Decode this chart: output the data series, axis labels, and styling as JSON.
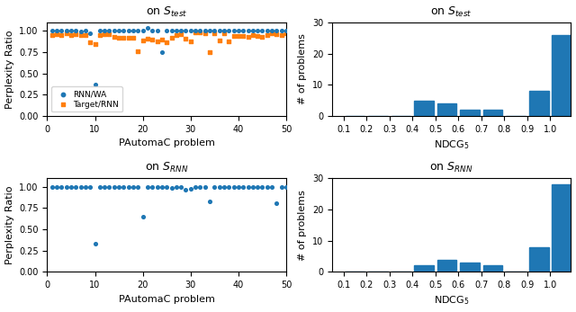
{
  "title_test": "on $S_{test}$",
  "title_rnn": "on $S_{RNN}$",
  "xlabel_scatter": "PAutomaC problem",
  "ylabel_scatter": "Perplexity Ratio",
  "xlabel_hist": "NDCG$_5$",
  "ylabel_hist": "# of problems",
  "legend_rnn_wa": "RNN/WA",
  "legend_target_rnn": "Target/RNN",
  "scatter_color_blue": "#1f77b4",
  "scatter_color_orange": "#ff7f0e",
  "hist_color": "#1f77b4",
  "rnn_wa_x": [
    1,
    2,
    3,
    4,
    5,
    6,
    7,
    8,
    9,
    10,
    11,
    12,
    13,
    14,
    15,
    16,
    17,
    18,
    19,
    20,
    21,
    22,
    23,
    24,
    25,
    26,
    27,
    28,
    29,
    30,
    31,
    32,
    33,
    34,
    35,
    36,
    37,
    38,
    39,
    40,
    41,
    42,
    43,
    44,
    45,
    46,
    47,
    48,
    49,
    50
  ],
  "rnn_wa_y_test": [
    1.0,
    1.0,
    1.0,
    1.0,
    1.0,
    1.0,
    0.99,
    1.0,
    0.97,
    0.37,
    1.0,
    1.0,
    1.0,
    1.0,
    1.0,
    1.0,
    1.0,
    1.0,
    1.0,
    1.0,
    1.04,
    1.0,
    1.0,
    0.75,
    1.0,
    1.0,
    1.0,
    1.0,
    1.0,
    1.0,
    1.0,
    1.0,
    1.0,
    1.0,
    1.0,
    1.0,
    1.0,
    1.0,
    1.0,
    1.0,
    1.0,
    1.0,
    1.0,
    1.0,
    1.0,
    1.0,
    1.0,
    1.0,
    1.0,
    1.0
  ],
  "target_rnn_x": [
    1,
    2,
    3,
    4,
    5,
    6,
    7,
    8,
    9,
    10,
    11,
    12,
    13,
    14,
    15,
    16,
    17,
    18,
    19,
    20,
    21,
    22,
    23,
    24,
    25,
    26,
    27,
    28,
    29,
    30,
    31,
    32,
    33,
    34,
    35,
    36,
    37,
    38,
    39,
    40,
    41,
    42,
    43,
    44,
    45,
    46,
    47,
    48,
    49,
    50
  ],
  "target_rnn_y_test": [
    0.95,
    0.96,
    0.95,
    0.97,
    0.95,
    0.96,
    0.95,
    0.95,
    0.87,
    0.84,
    0.95,
    0.96,
    0.96,
    0.93,
    0.92,
    0.92,
    0.92,
    0.92,
    0.76,
    0.89,
    0.91,
    0.9,
    0.88,
    0.9,
    0.87,
    0.92,
    0.95,
    0.96,
    0.91,
    0.88,
    0.98,
    0.98,
    0.97,
    0.75,
    0.97,
    0.89,
    0.97,
    0.88,
    0.94,
    0.94,
    0.94,
    0.93,
    0.95,
    0.94,
    0.93,
    0.95,
    0.97,
    0.96,
    0.95,
    0.97
  ],
  "rnn_wa_y_rnn": [
    1.0,
    1.0,
    1.0,
    1.0,
    1.0,
    1.0,
    1.0,
    1.0,
    1.0,
    0.33,
    1.0,
    1.0,
    1.0,
    1.0,
    1.0,
    1.0,
    1.0,
    1.0,
    1.0,
    0.65,
    1.0,
    1.0,
    1.0,
    1.0,
    1.0,
    0.99,
    1.0,
    1.0,
    0.97,
    0.98,
    1.0,
    1.0,
    1.0,
    0.83,
    1.0,
    1.0,
    1.0,
    1.0,
    1.0,
    1.0,
    1.0,
    1.0,
    1.0,
    1.0,
    1.0,
    1.0,
    1.0,
    0.81,
    1.0,
    1.0
  ],
  "hist_test_counts": [
    0,
    0,
    0,
    5,
    4,
    2,
    2,
    0,
    8,
    26
  ],
  "hist_rnn_counts": [
    0,
    0,
    0,
    2,
    4,
    3,
    2,
    0,
    8,
    28
  ],
  "hist_bins_left": [
    0.1,
    0.2,
    0.3,
    0.4,
    0.5,
    0.6,
    0.7,
    0.8,
    0.9,
    1.0
  ],
  "bin_width": 0.1,
  "scatter_xlim": [
    0,
    50
  ],
  "scatter_ylim": [
    0.0,
    1.1
  ],
  "scatter_yticks": [
    0.0,
    0.25,
    0.5,
    0.75,
    1.0
  ],
  "hist_xlim": [
    0.05,
    1.09
  ],
  "hist_ylim": [
    0,
    30
  ],
  "xticks_hist": [
    0.1,
    0.2,
    0.3,
    0.4,
    0.5,
    0.6,
    0.7,
    0.8,
    0.9,
    1.0
  ],
  "scatter_xticks": [
    0,
    10,
    20,
    30,
    40,
    50
  ]
}
